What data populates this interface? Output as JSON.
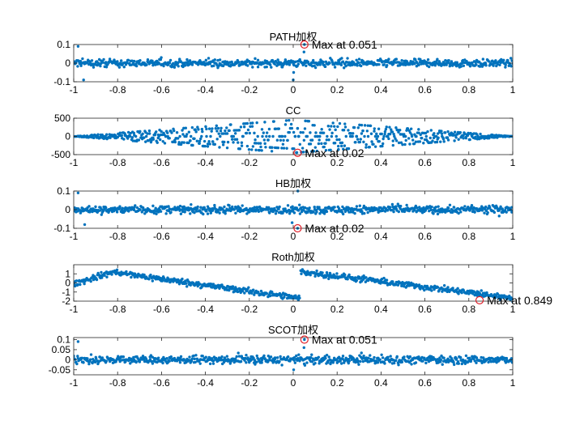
{
  "chart_data": [
    {
      "type": "scatter",
      "title": "PATH加权",
      "xlim": [
        -1,
        1
      ],
      "ylim": [
        -0.1,
        0.1
      ],
      "yticks": [
        -0.1,
        0,
        0.1
      ],
      "ytick_labels": [
        "-0.1",
        "0",
        "0.1"
      ],
      "xticks": [
        -1,
        -0.8,
        -0.6,
        -0.4,
        -0.2,
        0,
        0.2,
        0.4,
        0.6,
        0.8,
        1
      ],
      "xtick_labels": [
        "-1",
        "-0.8",
        "-0.6",
        "-0.4",
        "-0.2",
        "0",
        "0.2",
        "0.4",
        "0.6",
        "0.8",
        "1"
      ],
      "description": "Dense noise band roughly between -0.03 and 0.03 across the full range, with a spike near 0.051 and a dip near 0.",
      "noise_amplitude": 0.03,
      "max_marker": {
        "x": 0.051,
        "y": 0.1,
        "label": "Max at 0.051"
      }
    },
    {
      "type": "scatter",
      "title": "CC",
      "xlim": [
        -1,
        1
      ],
      "ylim": [
        -500,
        500
      ],
      "yticks": [
        -500,
        0,
        500
      ],
      "ytick_labels": [
        "-500",
        "0",
        "500"
      ],
      "xticks": [
        -1,
        -0.8,
        -0.6,
        -0.4,
        -0.2,
        0,
        0.2,
        0.4,
        0.6,
        0.8,
        1
      ],
      "xtick_labels": [
        "-1",
        "-0.8",
        "-0.6",
        "-0.4",
        "-0.2",
        "0",
        "0.2",
        "0.4",
        "0.6",
        "0.8",
        "1"
      ],
      "description": "Diamond-shaped envelope: discrete horizontal bands whose spread grows linearly from 0 at x=-1 and x=1 to about ±450 at x=0.",
      "peak_amplitude": 450,
      "max_marker": {
        "x": 0.02,
        "y": -450,
        "label": "Max at 0.02"
      }
    },
    {
      "type": "scatter",
      "title": "HB加权",
      "xlim": [
        -1,
        1
      ],
      "ylim": [
        -0.1,
        0.1
      ],
      "yticks": [
        -0.1,
        0,
        0.1
      ],
      "ytick_labels": [
        "-0.1",
        "0",
        "0.1"
      ],
      "xticks": [
        -1,
        -0.8,
        -0.6,
        -0.4,
        -0.2,
        0,
        0.2,
        0.4,
        0.6,
        0.8,
        1
      ],
      "xtick_labels": [
        "-1",
        "-0.8",
        "-0.6",
        "-0.4",
        "-0.2",
        "0",
        "0.2",
        "0.4",
        "0.6",
        "0.8",
        "1"
      ],
      "description": "Noise band roughly between -0.03 and 0.03 with a sharp negative spike at x≈0.02.",
      "noise_amplitude": 0.03,
      "max_marker": {
        "x": 0.02,
        "y": -0.1,
        "label": "Max at 0.02"
      }
    },
    {
      "type": "scatter",
      "title": "Roth加权",
      "xlim": [
        -1,
        1
      ],
      "ylim": [
        -2,
        2
      ],
      "yticks": [
        -2,
        -1,
        0,
        1
      ],
      "ytick_labels": [
        "-2",
        "-1",
        "0",
        "1"
      ],
      "xticks": [
        -1,
        -0.8,
        -0.6,
        -0.4,
        -0.2,
        0,
        0.2,
        0.4,
        0.6,
        0.8,
        1
      ],
      "xtick_labels": [
        "-1",
        "-0.8",
        "-0.6",
        "-0.4",
        "-0.2",
        "0",
        "0.2",
        "0.4",
        "0.6",
        "0.8",
        "1"
      ],
      "description": "Sawtooth-like pattern: band rises to about 1.2 near x=-0.8, falls to about -1.2 near x=0, jumps back up to about 1.2 at x≈0.05 and declines to about -1.6 near x=0.85.",
      "max_marker": {
        "x": 0.849,
        "y": -1.9,
        "label": "Max at 0.849"
      }
    },
    {
      "type": "scatter",
      "title": "SCOT加权",
      "xlim": [
        -1,
        1
      ],
      "ylim": [
        -0.075,
        0.11
      ],
      "yticks": [
        -0.05,
        0,
        0.05,
        0.1
      ],
      "ytick_labels": [
        "-0.05",
        "0",
        "0.05",
        "0.1"
      ],
      "xticks": [
        -1,
        -0.8,
        -0.6,
        -0.4,
        -0.2,
        0,
        0.2,
        0.4,
        0.6,
        0.8,
        1
      ],
      "xtick_labels": [
        "-1",
        "-0.8",
        "-0.6",
        "-0.4",
        "-0.2",
        "0",
        "0.2",
        "0.4",
        "0.6",
        "0.8",
        "1"
      ],
      "description": "Noise band roughly between -0.03 and 0.03 with a spike at x≈0.051.",
      "noise_amplitude": 0.03,
      "max_marker": {
        "x": 0.051,
        "y": 0.1,
        "label": "Max at 0.051"
      }
    }
  ],
  "colors": {
    "points": "#0072bd",
    "marker": "#e0202a",
    "axes": "#262626",
    "text": "#000000"
  }
}
